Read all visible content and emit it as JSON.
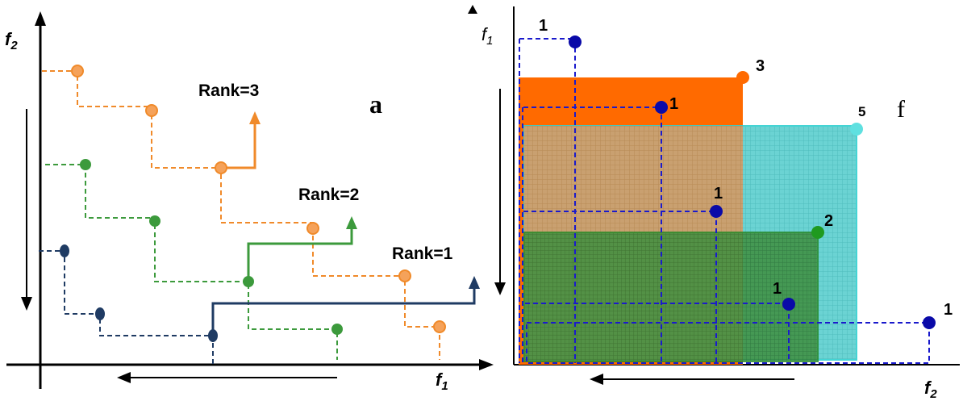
{
  "left_panel": {
    "panel_letter": "a",
    "y_axis_label": "f",
    "y_axis_subscript": "2",
    "x_axis_label": "f",
    "x_axis_subscript": "1",
    "rank_labels": [
      "Rank=3",
      "Rank=2",
      "Rank=1"
    ]
  },
  "right_panel": {
    "panel_letter": "f",
    "y_axis_label": "f",
    "y_axis_subscript": "1",
    "x_axis_label": "f",
    "x_axis_subscript": "2",
    "point_labels": [
      "1",
      "3",
      "1",
      "5",
      "1",
      "2",
      "1",
      "1"
    ]
  },
  "colors": {
    "rank1": "#1f3b63",
    "rank2": "#3c9a3c",
    "rank3": "#f08a2a",
    "orange_fill": "#ff6a00",
    "cyan_fill": "#40d0d0",
    "green_fill": "#2f8a2f",
    "blue_points": "#0a0aa8"
  }
}
